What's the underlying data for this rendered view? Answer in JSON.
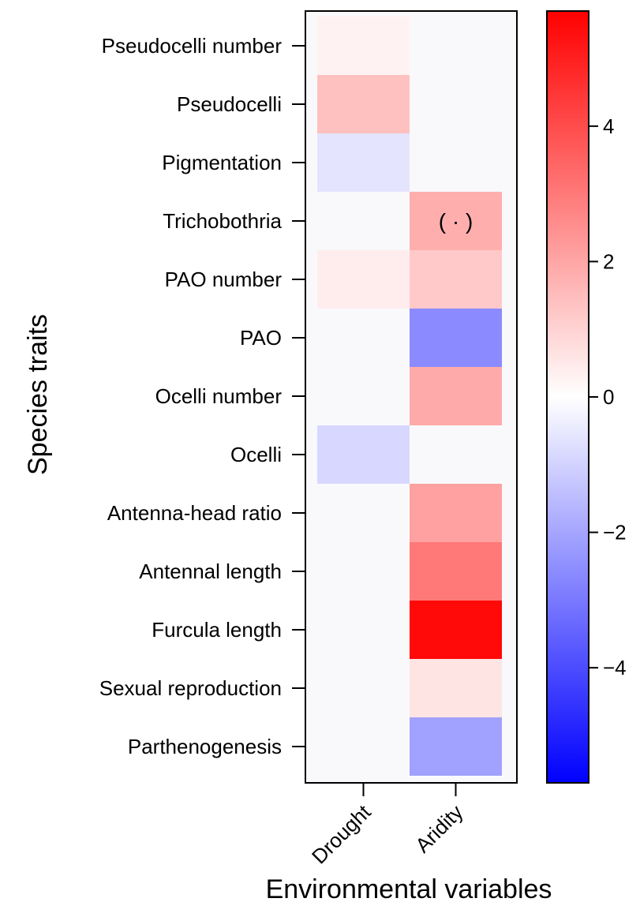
{
  "chart_data": {
    "type": "heatmap",
    "xlabel": "Environmental variables",
    "ylabel": "Species traits",
    "x_categories": [
      "Drought",
      "Aridity"
    ],
    "y_categories": [
      "Pseudocelli number",
      "Pseudocelli",
      "Pigmentation",
      "Trichobothria",
      "PAO number",
      "PAO",
      "Ocelli number",
      "Ocelli",
      "Antenna-head ratio",
      "Antennal length",
      "Furcula length",
      "Sexual reproduction",
      "Parthenogenesis"
    ],
    "values": [
      [
        0.3,
        0.0
      ],
      [
        1.4,
        0.0
      ],
      [
        -0.6,
        0.0
      ],
      [
        0.0,
        1.8
      ],
      [
        0.4,
        1.2
      ],
      [
        0.0,
        -2.6
      ],
      [
        0.0,
        1.9
      ],
      [
        -0.9,
        0.0
      ],
      [
        0.0,
        2.1
      ],
      [
        0.0,
        3.0
      ],
      [
        0.0,
        5.5
      ],
      [
        0.0,
        0.6
      ],
      [
        0.0,
        -2.1
      ]
    ],
    "annotations": [
      {
        "row": "Trichobothria",
        "column": "Aridity",
        "text": "( · )"
      }
    ],
    "colorbar": {
      "range": [
        -5.7,
        5.7
      ],
      "ticks": [
        4,
        2,
        0,
        -2,
        -4
      ],
      "tick_labels": [
        "4",
        "2",
        "0",
        "−2",
        "−4"
      ],
      "low_color": "#0000ff",
      "mid_color": "#ffffff",
      "high_color": "#ff0000"
    },
    "background_color": "#f9f9fc"
  }
}
